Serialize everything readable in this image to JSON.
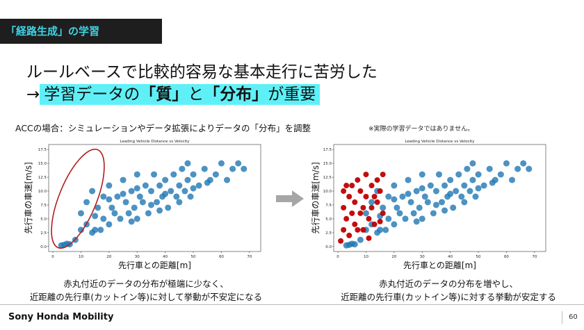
{
  "header": {
    "tag": "「経路生成」の学習",
    "line1": "ルールベースで比較的容易な基本走行に苦労した",
    "line2": [
      "→",
      "学習データの",
      "「質」",
      "と",
      "「分布」",
      "が重要"
    ]
  },
  "subtitle": "ACCの場合：シミュレーションやデータ拡張によりデータの「分布」を調整",
  "note": "※実際の学習データではありません。",
  "charts": [
    {
      "title": "Leading Vehicle Distance vs Velocity",
      "xlabel": "先行車との距離[m]",
      "ylabel": "先行車の車速[m/s]",
      "xlim": [
        -1.5,
        74
      ],
      "ylim": [
        -0.9,
        18.4
      ],
      "xticks": [
        0,
        10,
        20,
        30,
        40,
        50,
        60,
        70
      ],
      "yticks": [
        {
          "value": 0,
          "label": "0.0"
        },
        {
          "value": 2.5,
          "label": "2.5"
        },
        {
          "value": 5,
          "label": "5.0"
        },
        {
          "value": 7.5,
          "label": "7.5"
        },
        {
          "value": 10,
          "label": "10.0"
        },
        {
          "value": 12.5,
          "label": "12.5"
        },
        {
          "value": 15,
          "label": "15.0"
        },
        {
          "value": 17.5,
          "label": "17.5"
        }
      ],
      "series": [
        {
          "color": "#1f77b4",
          "x": [
            3,
            4,
            5,
            6,
            8,
            10,
            10,
            12,
            12,
            14,
            14,
            15,
            16,
            17,
            18,
            18,
            20,
            20,
            21,
            22,
            23,
            24,
            25,
            26,
            27,
            28,
            29,
            30,
            30,
            31,
            32,
            33,
            34,
            35,
            36,
            37,
            38,
            39,
            40,
            41,
            42,
            43,
            44,
            45,
            46,
            47,
            48,
            49,
            50,
            52,
            54,
            56,
            58,
            60,
            62,
            64,
            66,
            68,
            20,
            25,
            30,
            35,
            40,
            45,
            50,
            55,
            15,
            28,
            38,
            48
          ],
          "values": [
            0.2,
            0.3,
            0.5,
            0.4,
            1.2,
            3,
            6,
            4,
            8,
            2.5,
            10,
            5.5,
            7,
            3,
            9,
            5,
            4,
            11,
            7,
            6,
            9,
            5,
            12,
            8,
            6,
            10,
            7,
            13,
            5,
            9,
            8,
            11,
            6,
            10,
            13,
            8,
            11,
            9,
            12,
            7,
            10,
            13,
            9,
            11,
            14,
            10,
            12,
            9,
            13,
            11,
            14,
            12,
            13,
            15,
            12,
            14,
            15,
            14,
            8.5,
            9.5,
            10.5,
            7.5,
            9.5,
            8,
            10.5,
            11.5,
            3,
            4.5,
            6.5,
            15
          ]
        }
      ],
      "caption": [
        "赤丸付近のデータの分布が極端に少なく、",
        "近距離の先行車(カットイン等)に対して挙動が不安定になる"
      ]
    },
    {
      "title": "Leading Vehicle Distance vs Velocity",
      "xlabel": "先行車との距離[m]",
      "ylabel": "先行車の車速[m/s]",
      "xlim": [
        -1.5,
        74
      ],
      "ylim": [
        -0.9,
        18.4
      ],
      "xticks": [
        0,
        10,
        20,
        30,
        40,
        50,
        60,
        70
      ],
      "yticks": [
        {
          "value": 0,
          "label": "0.0"
        },
        {
          "value": 2.5,
          "label": "2.5"
        },
        {
          "value": 5,
          "label": "5.0"
        },
        {
          "value": 7.5,
          "label": "7.5"
        },
        {
          "value": 10,
          "label": "10.0"
        },
        {
          "value": 12.5,
          "label": "12.5"
        },
        {
          "value": 15,
          "label": "15.0"
        },
        {
          "value": 17.5,
          "label": "17.5"
        }
      ],
      "series": [
        {
          "color": "#1f77b4",
          "x": [
            3,
            4,
            5,
            6,
            8,
            10,
            10,
            12,
            12,
            14,
            14,
            15,
            16,
            17,
            18,
            18,
            20,
            20,
            21,
            22,
            23,
            24,
            25,
            26,
            27,
            28,
            29,
            30,
            30,
            31,
            32,
            33,
            34,
            35,
            36,
            37,
            38,
            39,
            40,
            41,
            42,
            43,
            44,
            45,
            46,
            47,
            48,
            49,
            50,
            52,
            54,
            56,
            58,
            60,
            62,
            64,
            66,
            68,
            20,
            25,
            30,
            35,
            40,
            45,
            50,
            55,
            15,
            28,
            38,
            48
          ],
          "values": [
            0.2,
            0.3,
            0.5,
            0.4,
            1.2,
            3,
            6,
            4,
            8,
            2.5,
            10,
            5.5,
            7,
            3,
            9,
            5,
            4,
            11,
            7,
            6,
            9,
            5,
            12,
            8,
            6,
            10,
            7,
            13,
            5,
            9,
            8,
            11,
            6,
            10,
            13,
            8,
            11,
            9,
            12,
            7,
            10,
            13,
            9,
            11,
            14,
            10,
            12,
            9,
            13,
            11,
            14,
            12,
            13,
            15,
            12,
            14,
            15,
            14,
            8.5,
            9.5,
            10.5,
            7.5,
            9.5,
            8,
            10.5,
            11.5,
            3,
            4.5,
            6.5,
            15
          ]
        },
        {
          "color": "#c00000",
          "x": [
            1,
            2,
            2,
            3,
            4,
            4,
            5,
            6,
            6,
            7,
            8,
            8,
            9,
            10,
            10,
            11,
            12,
            12,
            13,
            14,
            14,
            15,
            16,
            16,
            3,
            5,
            7,
            9,
            11,
            13,
            15,
            2
          ],
          "values": [
            1,
            3,
            7,
            5,
            2,
            9,
            11,
            4,
            8,
            12,
            6,
            10,
            3,
            9,
            13,
            5,
            11,
            7,
            4,
            12,
            8,
            10,
            6,
            13,
            11,
            6,
            3,
            7,
            1.5,
            9,
            4.5,
            10
          ]
        }
      ],
      "caption": [
        "赤丸付近のデータの分布を増やし、",
        "近距離の先行車(カットイン等)に対する挙動が安定する"
      ]
    }
  ],
  "footer": {
    "brand": "Sony Honda Mobility",
    "page": "60"
  }
}
